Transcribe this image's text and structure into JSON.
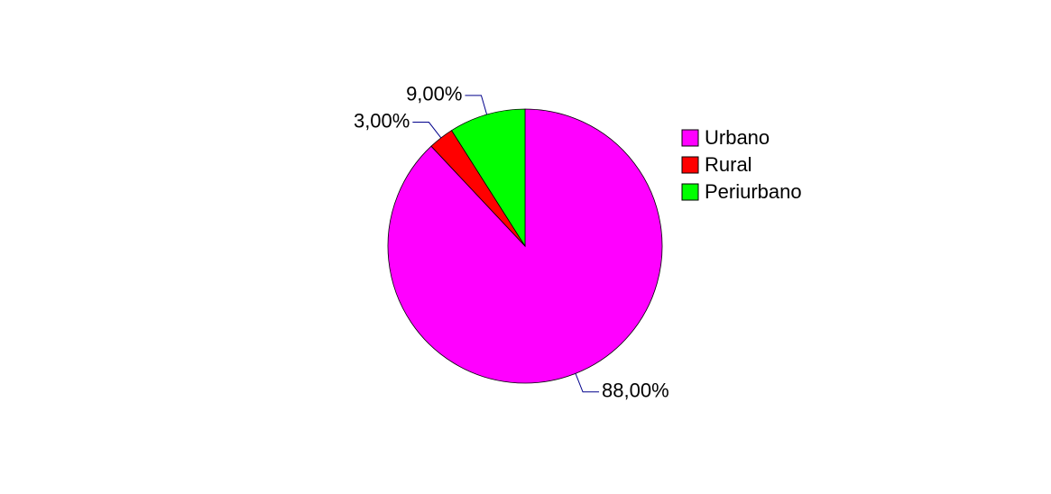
{
  "chart_data": {
    "type": "pie",
    "categories": [
      "Urbano",
      "Rural",
      "Periurbano"
    ],
    "values": [
      88,
      3,
      9
    ],
    "value_labels": [
      "88,00%",
      "3,00%",
      "9,00%"
    ],
    "colors": [
      "#ff00ff",
      "#ff0000",
      "#00ff00"
    ],
    "legend": "right"
  }
}
